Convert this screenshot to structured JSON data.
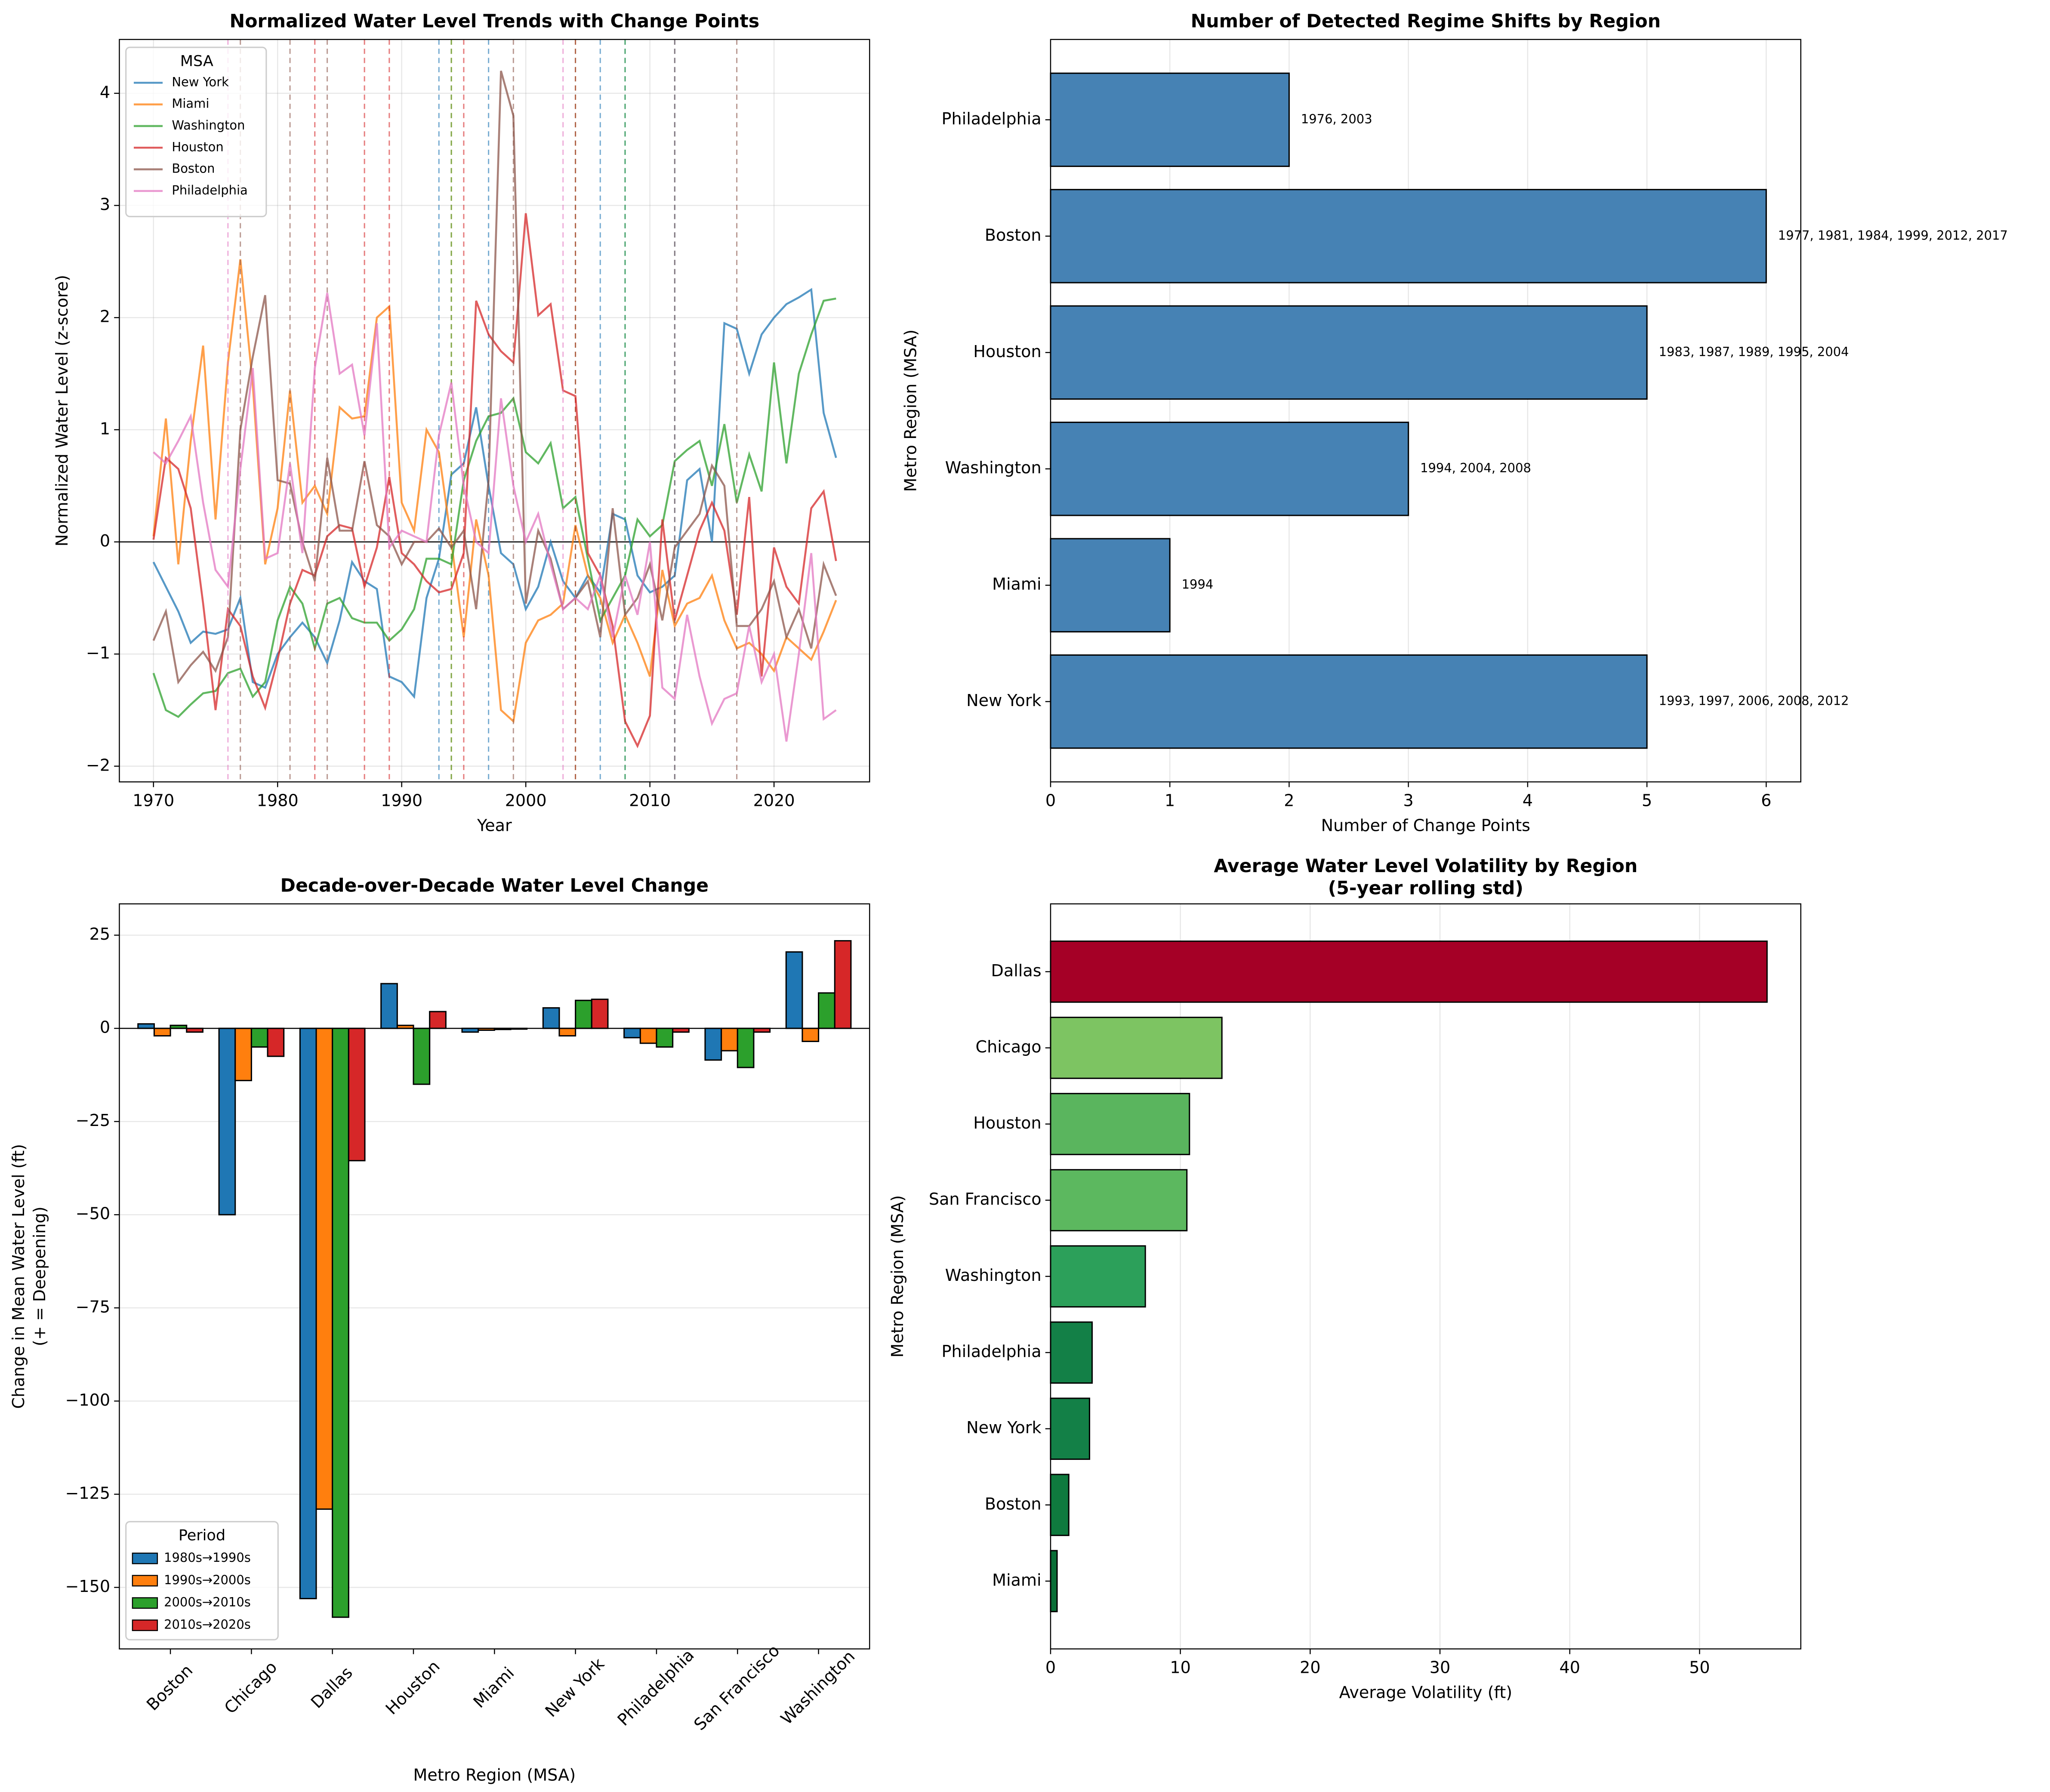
{
  "chart_data": [
    {
      "type": "line",
      "title": "Normalized Water Level Trends with Change Points",
      "xlabel": "Year",
      "ylabel": "Normalized Water Level (z-score)",
      "x": [
        1970,
        1971,
        1972,
        1973,
        1974,
        1975,
        1976,
        1977,
        1978,
        1979,
        1980,
        1981,
        1982,
        1983,
        1984,
        1985,
        1986,
        1987,
        1988,
        1989,
        1990,
        1991,
        1992,
        1993,
        1994,
        1995,
        1996,
        1997,
        1998,
        1999,
        2000,
        2001,
        2002,
        2003,
        2004,
        2005,
        2006,
        2007,
        2008,
        2009,
        2010,
        2011,
        2012,
        2013,
        2014,
        2015,
        2016,
        2017,
        2018,
        2019,
        2020,
        2021,
        2022,
        2023,
        2024,
        2025
      ],
      "series": [
        {
          "name": "New York",
          "color": "#1f77b4",
          "change_points": [
            1993,
            1997,
            2006,
            2008,
            2012
          ],
          "values": [
            -0.18,
            -0.4,
            -0.62,
            -0.9,
            -0.8,
            -0.82,
            -0.78,
            -0.5,
            -1.25,
            -1.3,
            -1.0,
            -0.85,
            -0.72,
            -0.85,
            -1.08,
            -0.7,
            -0.18,
            -0.35,
            -0.42,
            -1.2,
            -1.25,
            -1.38,
            -0.5,
            -0.15,
            0.6,
            0.7,
            1.2,
            0.5,
            -0.1,
            -0.2,
            -0.6,
            -0.4,
            0.0,
            -0.35,
            -0.5,
            -0.3,
            -0.45,
            0.25,
            0.2,
            -0.3,
            -0.45,
            -0.4,
            -0.3,
            0.55,
            0.65,
            0.0,
            1.95,
            1.9,
            1.5,
            1.85,
            2.0,
            2.12,
            2.18,
            2.25,
            1.15,
            0.75
          ]
        },
        {
          "name": "Miami",
          "color": "#ff7f0e",
          "change_points": [
            1994
          ],
          "values": [
            0.05,
            1.1,
            -0.2,
            0.9,
            1.75,
            0.2,
            1.6,
            2.52,
            1.4,
            -0.2,
            0.3,
            1.35,
            0.35,
            0.5,
            0.25,
            1.2,
            1.1,
            1.12,
            2.0,
            2.1,
            0.35,
            0.1,
            1.0,
            0.8,
            0.0,
            -0.85,
            0.2,
            -0.3,
            -1.5,
            -1.6,
            -0.9,
            -0.7,
            -0.65,
            -0.55,
            0.15,
            -0.3,
            -0.5,
            -0.9,
            -0.65,
            -0.9,
            -1.2,
            -0.25,
            -0.75,
            -0.55,
            -0.5,
            -0.3,
            -0.7,
            -0.95,
            -0.9,
            -1.0,
            -1.15,
            -0.85,
            -0.95,
            -1.05,
            -0.8,
            -0.52
          ]
        },
        {
          "name": "Washington",
          "color": "#2ca02c",
          "change_points": [
            1994,
            2004,
            2008
          ],
          "values": [
            -1.17,
            -1.5,
            -1.56,
            -1.45,
            -1.35,
            -1.33,
            -1.17,
            -1.13,
            -1.38,
            -1.25,
            -0.7,
            -0.4,
            -0.55,
            -0.95,
            -0.55,
            -0.5,
            -0.68,
            -0.72,
            -0.72,
            -0.88,
            -0.78,
            -0.6,
            -0.15,
            -0.15,
            -0.2,
            0.55,
            0.9,
            1.12,
            1.15,
            1.28,
            0.8,
            0.7,
            0.88,
            0.3,
            0.4,
            -0.15,
            -0.7,
            -0.5,
            -0.3,
            0.2,
            0.05,
            0.15,
            0.72,
            0.82,
            0.9,
            0.5,
            1.05,
            0.35,
            0.78,
            0.45,
            1.6,
            0.7,
            1.5,
            1.85,
            2.15,
            2.17
          ]
        },
        {
          "name": "Houston",
          "color": "#d62728",
          "change_points": [
            1983,
            1987,
            1989,
            1995,
            2004
          ],
          "values": [
            0.02,
            0.75,
            0.65,
            0.3,
            -0.55,
            -1.5,
            -0.6,
            -0.75,
            -1.2,
            -1.48,
            -1.05,
            -0.55,
            -0.25,
            -0.3,
            0.05,
            0.15,
            0.12,
            -0.4,
            -0.05,
            0.58,
            -0.1,
            -0.2,
            -0.35,
            -0.45,
            -0.42,
            -0.1,
            2.15,
            1.85,
            1.7,
            1.6,
            2.93,
            2.02,
            2.12,
            1.35,
            1.3,
            -0.1,
            -0.3,
            -0.75,
            -1.6,
            -1.82,
            -1.55,
            0.2,
            -0.7,
            -0.3,
            0.1,
            0.35,
            0.1,
            -0.65,
            0.4,
            -1.2,
            -0.05,
            -0.4,
            -0.55,
            0.3,
            0.45,
            -0.17
          ]
        },
        {
          "name": "Boston",
          "color": "#8c564b",
          "change_points": [
            1977,
            1981,
            1984,
            1999,
            2012,
            2017
          ],
          "values": [
            -0.88,
            -0.62,
            -1.25,
            -1.1,
            -0.98,
            -1.15,
            -0.85,
            1.0,
            1.65,
            2.2,
            0.55,
            0.52,
            0.0,
            -0.35,
            0.75,
            0.1,
            0.1,
            0.72,
            0.15,
            0.05,
            -0.2,
            0.0,
            0.0,
            0.12,
            -0.05,
            0.1,
            -0.6,
            0.55,
            4.2,
            3.8,
            -0.55,
            0.1,
            -0.15,
            -0.6,
            -0.5,
            -0.35,
            -0.85,
            0.3,
            -0.65,
            -0.5,
            -0.2,
            -0.7,
            -0.05,
            0.1,
            0.25,
            0.68,
            0.5,
            -0.75,
            -0.75,
            -0.6,
            -0.35,
            -0.85,
            -0.6,
            -0.95,
            -0.2,
            -0.48
          ]
        },
        {
          "name": "Philadelphia",
          "color": "#e377c2",
          "change_points": [
            1976,
            2003
          ],
          "values": [
            0.8,
            0.7,
            0.9,
            1.12,
            0.35,
            -0.25,
            -0.4,
            0.65,
            1.55,
            -0.15,
            -0.1,
            0.7,
            -0.1,
            1.55,
            2.22,
            1.5,
            1.58,
            0.95,
            1.95,
            -0.05,
            0.1,
            0.05,
            0.0,
            0.95,
            1.42,
            0.5,
            0.0,
            -0.1,
            1.28,
            0.5,
            0.0,
            0.25,
            -0.2,
            -0.6,
            -0.5,
            -0.6,
            -0.3,
            -0.85,
            -0.3,
            -0.65,
            0.0,
            -1.3,
            -1.4,
            -0.65,
            -1.2,
            -1.62,
            -1.4,
            -1.35,
            -0.75,
            -1.25,
            -1.0,
            -1.78,
            -1.0,
            -0.1,
            -1.58,
            -1.5
          ]
        }
      ],
      "xlim": [
        1967.25,
        2027.7
      ],
      "ylim": [
        -2.14,
        4.48
      ],
      "xticks": [
        1970,
        1980,
        1990,
        2000,
        2010,
        2020
      ],
      "yticks": [
        {
          "value": -2,
          "label": "−2"
        },
        {
          "value": -1,
          "label": "−1"
        },
        0,
        1,
        2,
        3,
        4
      ],
      "legend_title": "MSA",
      "legend": "upper left",
      "grid": true
    },
    {
      "type": "barh",
      "title": "Number of Detected Regime Shifts by Region",
      "xlabel": "Number of Change Points",
      "ylabel": "Metro Region (MSA)",
      "categories": [
        "New York",
        "Miami",
        "Washington",
        "Houston",
        "Boston",
        "Philadelphia"
      ],
      "values": [
        5,
        1,
        3,
        5,
        6,
        2
      ],
      "labels": [
        "1993, 1997, 2006, 2008, 2012",
        "1994",
        "1994, 2004, 2008",
        "1983, 1987, 1989, 1995, 2004",
        "1977, 1981, 1984, 1999, 2012, 2017",
        "1976, 2003"
      ],
      "color": "#4682b4",
      "xlim": [
        0,
        6.29
      ],
      "xticks": [
        0,
        1,
        2,
        3,
        4,
        5,
        6
      ],
      "grid": true
    },
    {
      "type": "grouped_bar",
      "title": "Decade-over-Decade Water Level Change",
      "xlabel": "Metro Region (MSA)",
      "ylabel": [
        "Change in Mean Water Level (ft)",
        "(+ = Deepening)"
      ],
      "categories": [
        "Boston",
        "Chicago",
        "Dallas",
        "Houston",
        "Miami",
        "New York",
        "Philadelphia",
        "San Francisco",
        "Washington"
      ],
      "series": [
        {
          "name": "1980s→1990s",
          "color": "#1f77b4",
          "values": [
            1.2,
            -50,
            -153,
            12,
            -1,
            5.5,
            -2.5,
            -8.5,
            20.5
          ]
        },
        {
          "name": "1990s→2000s",
          "color": "#ff7f0e",
          "values": [
            -2,
            -14,
            -129,
            0.8,
            -0.5,
            -2,
            -4,
            -6,
            -3.5
          ]
        },
        {
          "name": "2000s→2010s",
          "color": "#2ca02c",
          "values": [
            0.8,
            -5,
            -158,
            -15,
            -0.3,
            7.5,
            -5,
            -10.5,
            9.5
          ]
        },
        {
          "name": "2010s→2020s",
          "color": "#d62728",
          "values": [
            -1,
            -7.5,
            -35.5,
            4.5,
            -0.2,
            7.8,
            -1,
            -1,
            23.5
          ]
        }
      ],
      "ylim": [
        -166.5,
        33.4
      ],
      "yticks": [
        {
          "value": -150,
          "label": "−150"
        },
        {
          "value": -125,
          "label": "−125"
        },
        {
          "value": -100,
          "label": "−100"
        },
        {
          "value": -75,
          "label": "−75"
        },
        {
          "value": -50,
          "label": "−50"
        },
        {
          "value": -25,
          "label": "−25"
        },
        0,
        25
      ],
      "legend_title": "Period",
      "legend": "lower left",
      "grid": true
    },
    {
      "type": "barh",
      "title": "Average Water Level Volatility by Region",
      "subtitle": "(5-year rolling std)",
      "xlabel": "Average Volatility (ft)",
      "ylabel": "Metro Region (MSA)",
      "categories": [
        "Miami",
        "Boston",
        "New York",
        "Philadelphia",
        "Washington",
        "San Francisco",
        "Houston",
        "Chicago",
        "Dallas"
      ],
      "values": [
        0.5,
        1.4,
        3.0,
        3.2,
        7.3,
        10.5,
        10.7,
        13.2,
        55.2
      ],
      "colors": [
        "#0a6e36",
        "#0f7a3e",
        "#138047",
        "#138047",
        "#2ca05a",
        "#5cb85f",
        "#5ab55e",
        "#7dc462",
        "#a50026"
      ],
      "xlim": [
        0,
        57.8
      ],
      "xticks": [
        0,
        10,
        20,
        30,
        40,
        50
      ],
      "grid": true
    }
  ]
}
